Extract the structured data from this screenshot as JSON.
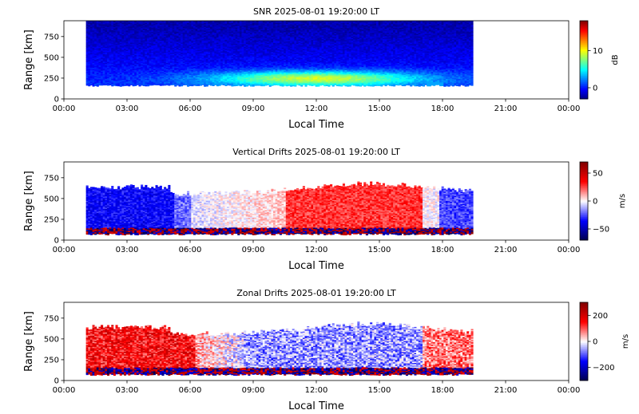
{
  "chart_data": [
    {
      "type": "heatmap",
      "title": "SNR 2025-08-01 19:20:00 LT",
      "xlabel": "Local Time",
      "ylabel": "Range [km]",
      "x_ticks": [
        "00:00",
        "03:00",
        "06:00",
        "09:00",
        "12:00",
        "15:00",
        "18:00",
        "21:00",
        "00:00"
      ],
      "x_range_hours": [
        0,
        24
      ],
      "y_ticks": [
        "0",
        "250",
        "500",
        "750"
      ],
      "y_range_km": [
        0,
        940
      ],
      "data_time_span_hours": [
        1.05,
        19.4
      ],
      "colormap": "jet",
      "colorbar": {
        "label": "dB",
        "ticks": [
          "0",
          "10"
        ],
        "range": [
          -3,
          18
        ]
      },
      "description_values": {
        "bottom_edge_km_typical": 160,
        "high_snr_region_hours": [
          7,
          18
        ],
        "high_snr_region_range_km": [
          180,
          320
        ],
        "max_dB": 8,
        "background_dB_upper_range": -2
      }
    },
    {
      "type": "heatmap",
      "title": "Vertical Drifts 2025-08-01 19:20:00 LT",
      "xlabel": "Local Time",
      "ylabel": "Range [km]",
      "x_ticks": [
        "00:00",
        "03:00",
        "06:00",
        "09:00",
        "12:00",
        "15:00",
        "18:00",
        "21:00",
        "00:00"
      ],
      "x_range_hours": [
        0,
        24
      ],
      "y_ticks": [
        "0",
        "250",
        "500",
        "750"
      ],
      "y_range_km": [
        0,
        940
      ],
      "data_time_span_hours": [
        1.05,
        19.4
      ],
      "colormap": "seismic",
      "colorbar": {
        "label": "m/s",
        "ticks": [
          "50",
          "0",
          "−50"
        ],
        "range": [
          -70,
          70
        ]
      },
      "description_values": {
        "night_hours_downward_ms": -35,
        "day_peak_hours": [
          11,
          17
        ],
        "day_peak_upward_ms": 30
      }
    },
    {
      "type": "heatmap",
      "title": "Zonal Drifts 2025-08-01 19:20:00 LT",
      "xlabel": "Local Time",
      "ylabel": "Range [km]",
      "x_ticks": [
        "00:00",
        "03:00",
        "06:00",
        "09:00",
        "12:00",
        "15:00",
        "18:00",
        "21:00",
        "00:00"
      ],
      "x_range_hours": [
        0,
        24
      ],
      "y_ticks": [
        "0",
        "250",
        "500",
        "750"
      ],
      "y_range_km": [
        0,
        940
      ],
      "data_time_span_hours": [
        1.05,
        19.4
      ],
      "colormap": "seismic",
      "colorbar": {
        "label": "m/s",
        "ticks": [
          "200",
          "0",
          "−200"
        ],
        "range": [
          -300,
          300
        ]
      },
      "description_values": {
        "night_eastward_ms": 150,
        "day_westward_ms": -70
      }
    }
  ]
}
